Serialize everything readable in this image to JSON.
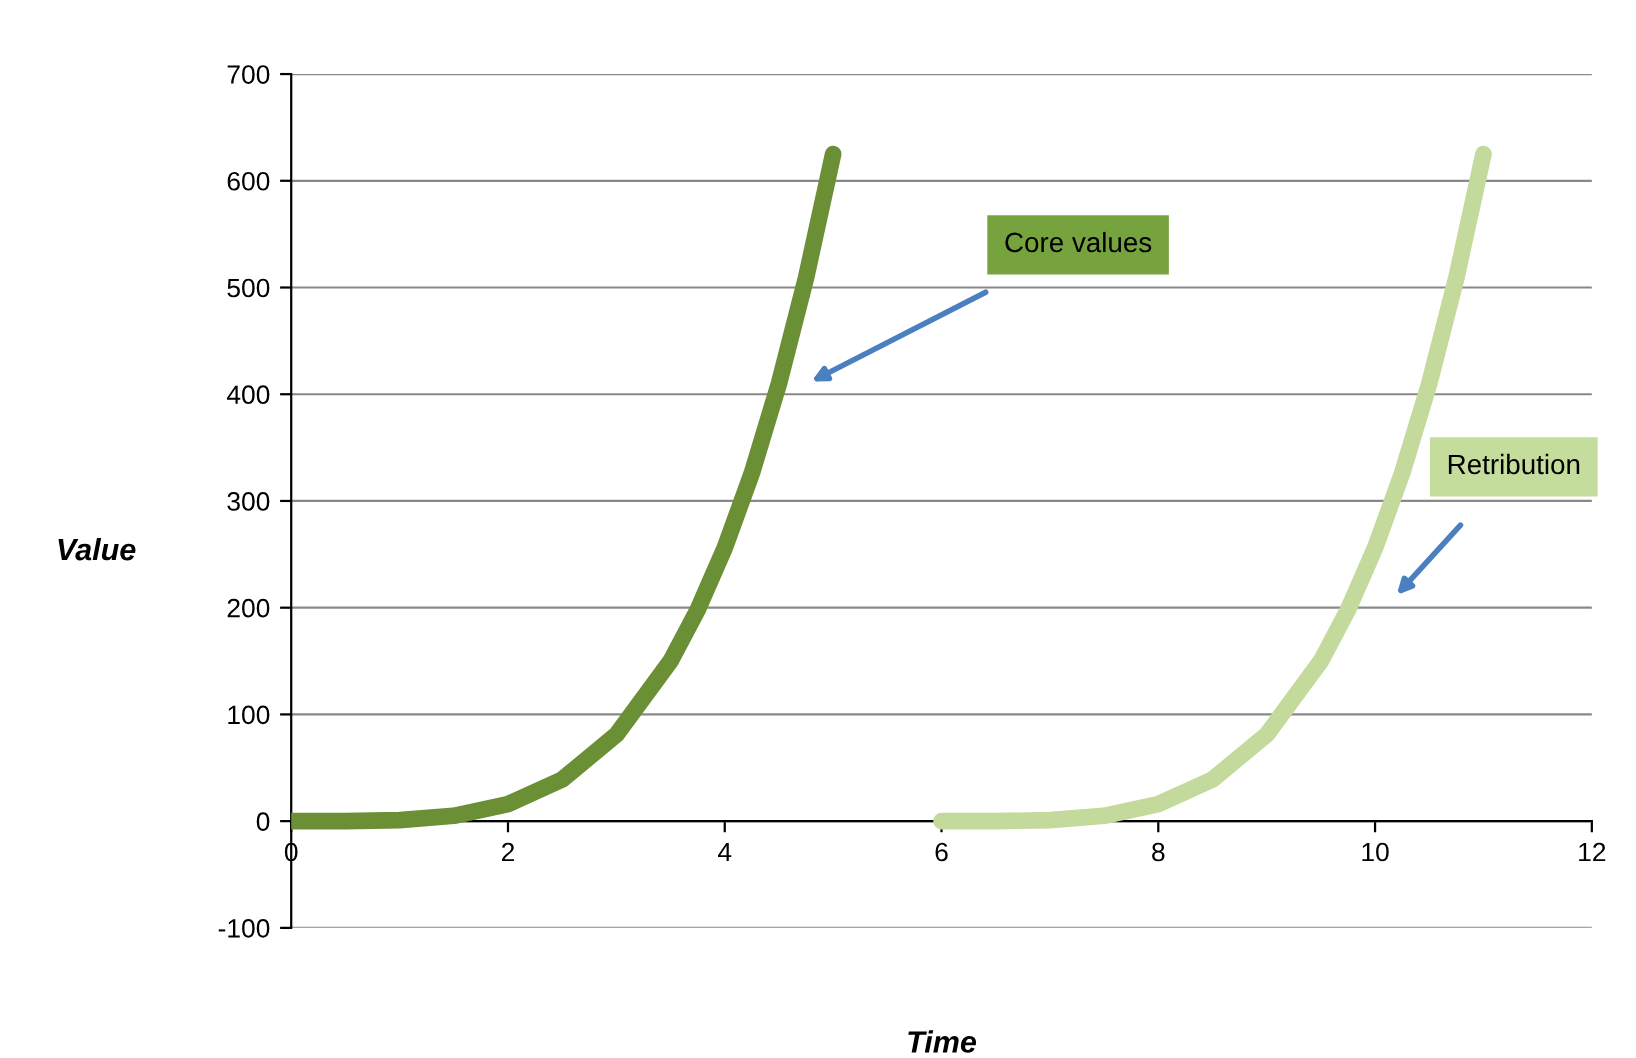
{
  "chart_data": {
    "type": "line",
    "xlabel": "Time",
    "ylabel": "Value",
    "series": [
      {
        "color": "#6a8f35",
        "x": [
          0,
          0.5,
          1,
          1.5,
          2,
          2.5,
          3,
          3.5,
          3.75,
          4,
          4.25,
          4.5,
          4.75,
          5
        ],
        "values": [
          0,
          0,
          1,
          5,
          16,
          39,
          81,
          150,
          198,
          256,
          326,
          410,
          509,
          625
        ]
      },
      {
        "color": "#c3da9c",
        "x": [
          6,
          6.5,
          7,
          7.5,
          8,
          8.5,
          9,
          9.5,
          9.75,
          10,
          10.25,
          10.5,
          10.75,
          11
        ],
        "values": [
          0,
          0,
          1,
          5,
          16,
          39,
          81,
          150,
          198,
          256,
          326,
          410,
          509,
          625
        ]
      }
    ],
    "xlim": [
      0,
      12
    ],
    "xticks": [
      0,
      2,
      4,
      6,
      8,
      10,
      12
    ],
    "ylim": [
      -100,
      700
    ],
    "yticks": [
      -100,
      0,
      100,
      200,
      300,
      400,
      500,
      600,
      700
    ],
    "grid": "y",
    "marker": "none",
    "line_style": "solid",
    "legend": false,
    "annotations": [
      "Core values",
      "Retribution"
    ]
  }
}
